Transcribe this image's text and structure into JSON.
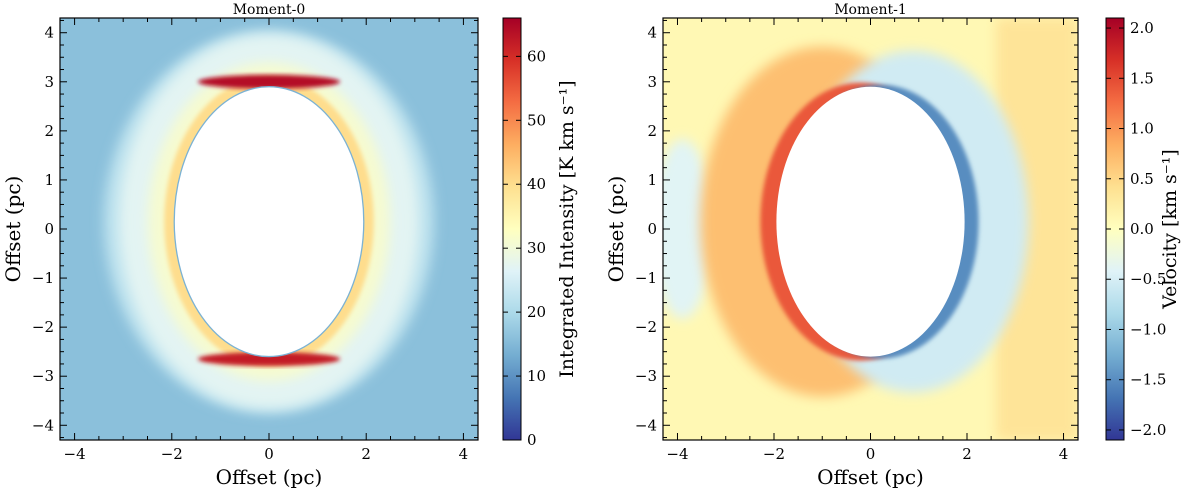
{
  "chart_data": [
    {
      "type": "heatmap",
      "title": "Moment-0",
      "xlabel": "Offset (pc)",
      "ylabel": "Offset (pc)",
      "xlim": [
        -4.3,
        4.3
      ],
      "ylim": [
        -4.3,
        4.3
      ],
      "xticks": [
        -4,
        -2,
        0,
        2,
        4
      ],
      "yticks": [
        -4,
        -3,
        -2,
        -1,
        0,
        1,
        2,
        3,
        4
      ],
      "xtick_labels": [
        "−4",
        "−2",
        "0",
        "2",
        "4"
      ],
      "ytick_labels": [
        "−4",
        "−3",
        "−2",
        "−1",
        "0",
        "1",
        "2",
        "3",
        "4"
      ],
      "colorbar": {
        "label": "Integrated Intensity [K km s⁻¹]",
        "range": [
          0,
          66
        ],
        "ticks": [
          0,
          10,
          20,
          30,
          40,
          50,
          60
        ],
        "tick_labels": [
          "0",
          "10",
          "20",
          "30",
          "40",
          "50",
          "60"
        ],
        "colormap": "RdYlBu_r"
      },
      "features": {
        "cavity_center": [
          0.0,
          0.15
        ],
        "cavity_semi_axes": [
          1.95,
          2.75
        ],
        "shell_outer_radius": [
          3.4,
          3.9
        ],
        "peak_regions": [
          {
            "x": 0.0,
            "y": 3.0,
            "value": 64
          },
          {
            "x": 0.0,
            "y": -2.65,
            "value": 62
          }
        ],
        "background_value": 16
      }
    },
    {
      "type": "heatmap",
      "title": "Moment-1",
      "xlabel": "Offset (pc)",
      "ylabel": "Offset (pc)",
      "xlim": [
        -4.3,
        4.3
      ],
      "ylim": [
        -4.3,
        4.3
      ],
      "xticks": [
        -4,
        -2,
        0,
        2,
        4
      ],
      "yticks": [
        -4,
        -3,
        -2,
        -1,
        0,
        1,
        2,
        3,
        4
      ],
      "xtick_labels": [
        "−4",
        "−2",
        "0",
        "2",
        "4"
      ],
      "ytick_labels": [
        "−4",
        "−3",
        "−2",
        "−1",
        "0",
        "1",
        "2",
        "3",
        "4"
      ],
      "colorbar": {
        "label": "Velocity [km s⁻¹]",
        "range": [
          -2.1,
          2.1
        ],
        "ticks": [
          -2.0,
          -1.5,
          -1.0,
          -0.5,
          0.0,
          0.5,
          1.0,
          1.5,
          2.0
        ],
        "tick_labels": [
          "−2.0",
          "−1.5",
          "−1.0",
          "−0.5",
          "0.0",
          "0.5",
          "1.0",
          "1.5",
          "2.0"
        ],
        "colormap": "RdYlBu_r"
      },
      "features": {
        "cavity_center": [
          0.0,
          0.15
        ],
        "cavity_semi_axes": [
          1.95,
          2.75
        ],
        "redshifted_side": "left",
        "blueshifted_side": "right",
        "rim_velocity_left": 1.4,
        "rim_velocity_right": -1.5,
        "background_velocity": 0.1
      }
    }
  ],
  "colors": {
    "rdylbu_r": [
      "#313695",
      "#4575b4",
      "#74add1",
      "#abd9e9",
      "#e0f3f8",
      "#ffffbf",
      "#fee090",
      "#fdae61",
      "#f46d43",
      "#d73027",
      "#a50026"
    ]
  }
}
